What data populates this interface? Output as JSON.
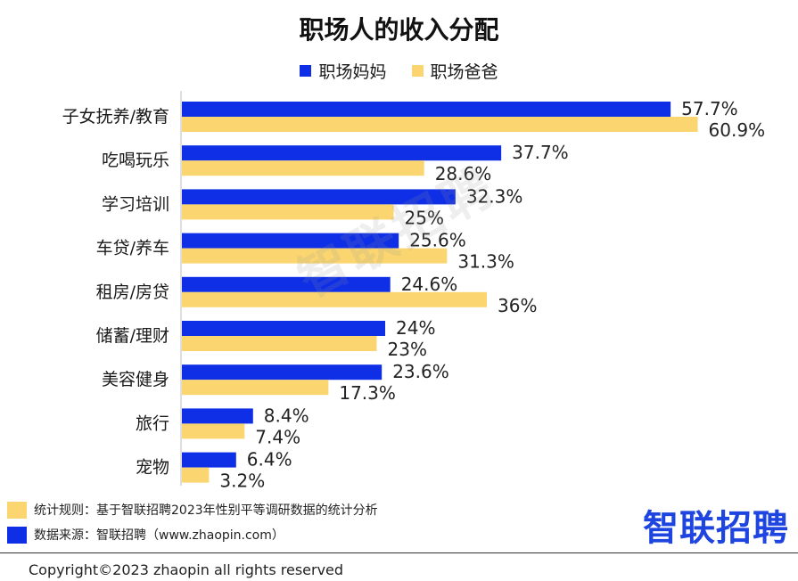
{
  "chart_data": {
    "type": "bar",
    "orientation": "horizontal",
    "title": "职场人的收入分配",
    "categories": [
      "子女抚养/教育",
      "吃喝玩乐",
      "学习培训",
      "车贷/养车",
      "租房/房贷",
      "储蓄/理财",
      "美容健身",
      "旅行",
      "宠物"
    ],
    "series": [
      {
        "name": "职场妈妈",
        "values": [
          57.7,
          37.7,
          32.3,
          25.6,
          24.6,
          24,
          23.6,
          8.4,
          6.4
        ],
        "labels": [
          "57.7%",
          "37.7%",
          "32.3%",
          "25.6%",
          "24.6%",
          "24%",
          "23.6%",
          "8.4%",
          "6.4%"
        ],
        "color": "#0f2fe6"
      },
      {
        "name": "职场爸爸",
        "values": [
          60.9,
          28.6,
          25,
          31.3,
          36,
          23,
          17.3,
          7.4,
          3.2
        ],
        "labels": [
          "60.9%",
          "28.6%",
          "25%",
          "31.3%",
          "36%",
          "23%",
          "17.3%",
          "7.4%",
          "3.2%"
        ],
        "color": "#fbd670"
      }
    ],
    "xlim": [
      0,
      70
    ],
    "legend_position": "top-center",
    "grid": false
  },
  "watermark": "智联招聘",
  "footer": {
    "rule_label": "统计规则：基于智联招聘2023年性别平等调研数据的统计分析",
    "source_label": "数据来源：智联招聘（www.zhaopin.com）",
    "rule_color": "#fbd670",
    "source_color": "#0f2fe6"
  },
  "brand": "智联招聘",
  "copyright": "Copyright©2023 zhaopin all rights reserved"
}
